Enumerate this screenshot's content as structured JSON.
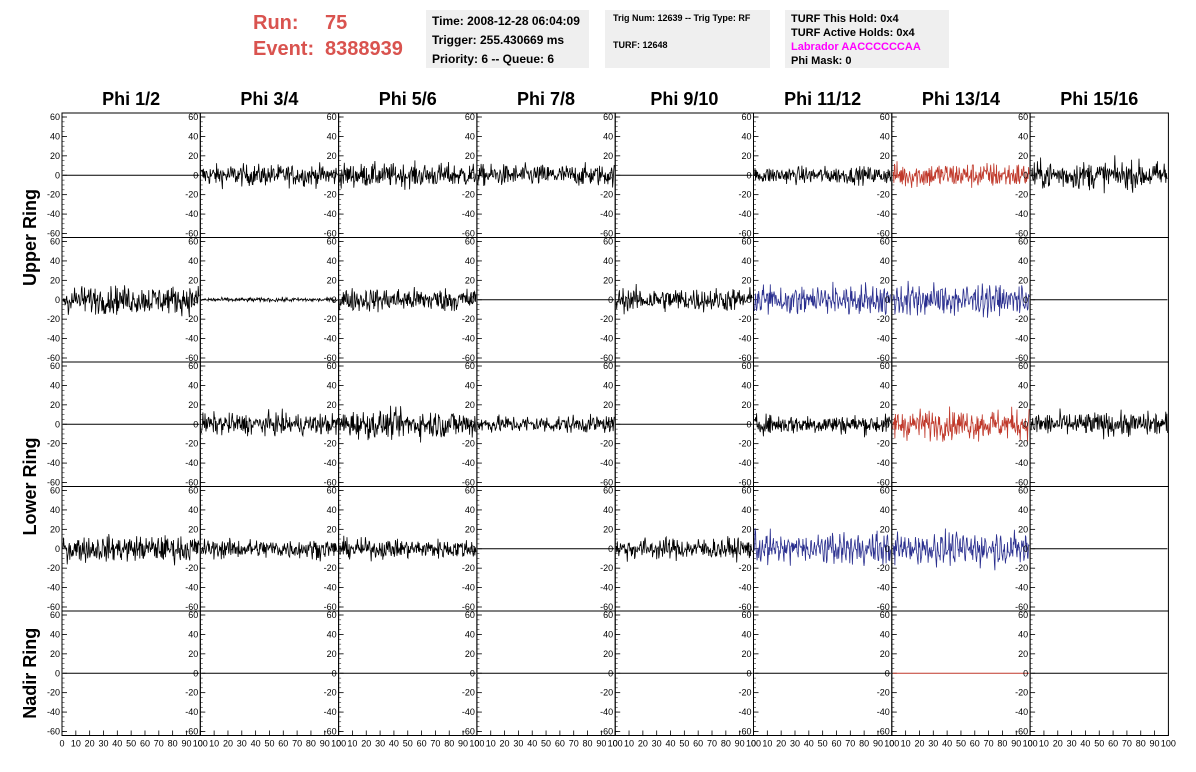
{
  "header": {
    "run_label": "Run:",
    "run_value": "75",
    "event_label": "Event:",
    "event_value": "8388939"
  },
  "info_time": {
    "time": "Time: 2008-12-28 06:04:09",
    "trigger": "Trigger: 255.430669 ms",
    "priority": "Priority: 6 -- Queue: 6"
  },
  "info_trig": {
    "trig": "Trig Num: 12639 -- Trig Type: RF",
    "turf": "TURF: 12648"
  },
  "info_turf": {
    "this_hold": "TURF This Hold: 0x4",
    "active_holds": "TURF Active Holds: 0x4",
    "labrador": "Labrador AACCCCCCAA",
    "phi_mask": "Phi Mask: 0"
  },
  "colors": {
    "black": "#000000",
    "red": "#c0392b",
    "blue": "#2a2f8f",
    "magenta": "#ff00ff",
    "title_red": "#d9534f"
  },
  "chart_data": {
    "type": "line",
    "columns": [
      "Phi 1/2",
      "Phi 3/4",
      "Phi 5/6",
      "Phi 7/8",
      "Phi 9/10",
      "Phi 11/12",
      "Phi 13/14",
      "Phi 15/16"
    ],
    "ring_labels": [
      "Upper Ring",
      "Lower Ring",
      "Nadir Ring"
    ],
    "ylim": [
      -60,
      60
    ],
    "xlim": [
      0,
      100
    ],
    "y_ticks": [
      60,
      40,
      20,
      0,
      -20,
      -40,
      -60
    ],
    "x_tick_labels": [
      "0",
      "10",
      "20",
      "30",
      "40",
      "50",
      "60",
      "70",
      "80",
      "90",
      "100"
    ],
    "rows": [
      {
        "ring": "Upper Ring",
        "cells": [
          {
            "color": "black",
            "amp": 0
          },
          {
            "color": "black",
            "amp": 10
          },
          {
            "color": "black",
            "amp": 11
          },
          {
            "color": "black",
            "amp": 10
          },
          {
            "color": "black",
            "amp": 0
          },
          {
            "color": "black",
            "amp": 8
          },
          {
            "color": "red",
            "amp": 12
          },
          {
            "color": "black",
            "amp": 13
          }
        ]
      },
      {
        "ring": "Upper Ring",
        "cells": [
          {
            "color": "black",
            "amp": 13
          },
          {
            "color": "black",
            "amp": 2
          },
          {
            "color": "black",
            "amp": 11
          },
          {
            "color": "black",
            "amp": 0
          },
          {
            "color": "black",
            "amp": 11
          },
          {
            "color": "blue",
            "amp": 12
          },
          {
            "color": "blue",
            "amp": 12
          },
          {
            "color": "black",
            "amp": 0
          }
        ]
      },
      {
        "ring": "Lower Ring",
        "cells": [
          {
            "color": "black",
            "amp": 0
          },
          {
            "color": "black",
            "amp": 10
          },
          {
            "color": "black",
            "amp": 13
          },
          {
            "color": "black",
            "amp": 8
          },
          {
            "color": "black",
            "amp": 0
          },
          {
            "color": "black",
            "amp": 9
          },
          {
            "color": "red",
            "amp": 14
          },
          {
            "color": "black",
            "amp": 11
          }
        ]
      },
      {
        "ring": "Lower Ring",
        "cells": [
          {
            "color": "black",
            "amp": 12
          },
          {
            "color": "black",
            "amp": 9
          },
          {
            "color": "black",
            "amp": 9
          },
          {
            "color": "black",
            "amp": 0
          },
          {
            "color": "black",
            "amp": 10
          },
          {
            "color": "blue",
            "amp": 12
          },
          {
            "color": "blue",
            "amp": 12
          },
          {
            "color": "black",
            "amp": 0
          }
        ]
      },
      {
        "ring": "Nadir Ring",
        "cells": [
          {
            "color": "black",
            "amp": 0
          },
          {
            "color": "black",
            "amp": 0
          },
          {
            "color": "black",
            "amp": 0
          },
          {
            "color": "black",
            "amp": 0
          },
          {
            "color": "black",
            "amp": 0
          },
          {
            "color": "black",
            "amp": 0
          },
          {
            "color": "red",
            "amp": 0
          },
          {
            "color": "black",
            "amp": 0
          }
        ]
      }
    ]
  }
}
